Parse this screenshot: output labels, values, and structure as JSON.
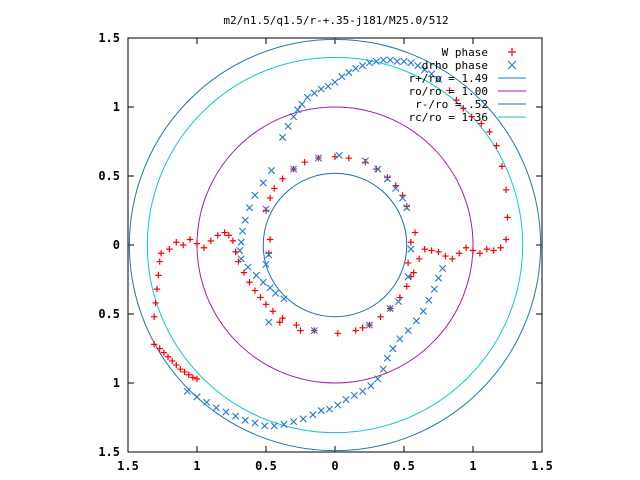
{
  "chart_data": {
    "type": "scatter",
    "title": "m2/n1.5/q1.5/r-+.35-j181/M25.0/512",
    "xlabel": "",
    "ylabel": "",
    "xlim": [
      -1.5,
      1.5
    ],
    "ylim": [
      -1.5,
      1.5
    ],
    "x_tick_labels": [
      "1.5",
      "1",
      "0.5",
      "0",
      "0.5",
      "1",
      "1.5"
    ],
    "y_tick_labels": [
      "1.5",
      "1",
      "0.5",
      "0",
      "0.5",
      "1",
      "1.5"
    ],
    "x_tick_values": [
      -1.5,
      -1,
      -0.5,
      0,
      0.5,
      1,
      1.5
    ],
    "y_tick_values": [
      1.5,
      1,
      0.5,
      0,
      -0.5,
      -1,
      -1.5
    ],
    "legend_position": "top-right",
    "grid": false,
    "circles": [
      {
        "name": "r+/ro = 1.49",
        "radius": 1.49,
        "color": "#1f77b4"
      },
      {
        "name": "ro/ro = 1.00",
        "radius": 1.0,
        "color": "#a020a0"
      },
      {
        "name": "r-/ro = .52",
        "radius": 0.52,
        "color": "#1a6fc0"
      },
      {
        "name": "rc/ro = 1.36",
        "radius": 1.36,
        "color": "#10c8c8"
      }
    ],
    "series": [
      {
        "name": "W phase",
        "marker": "plus",
        "color": "#ff0000",
        "points": [
          [
            -1.31,
            -0.72
          ],
          [
            -1.27,
            -0.75
          ],
          [
            -1.24,
            -0.78
          ],
          [
            -1.21,
            -0.81
          ],
          [
            -1.18,
            -0.84
          ],
          [
            -1.15,
            -0.87
          ],
          [
            -1.12,
            -0.9
          ],
          [
            -1.09,
            -0.92
          ],
          [
            -1.06,
            -0.94
          ],
          [
            -1.03,
            -0.96
          ],
          [
            -1.0,
            -0.97
          ],
          [
            -1.31,
            -0.52
          ],
          [
            -1.3,
            -0.42
          ],
          [
            -1.29,
            -0.32
          ],
          [
            -1.28,
            -0.22
          ],
          [
            -1.27,
            -0.12
          ],
          [
            -1.26,
            -0.06
          ],
          [
            -1.2,
            -0.03
          ],
          [
            -1.15,
            0.02
          ],
          [
            -1.1,
            0.0
          ],
          [
            -1.05,
            0.04
          ],
          [
            -1.0,
            0.01
          ],
          [
            -0.95,
            -0.02
          ],
          [
            -0.9,
            0.03
          ],
          [
            -0.85,
            0.07
          ],
          [
            -0.8,
            0.09
          ],
          [
            -0.77,
            0.07
          ],
          [
            -0.74,
            0.03
          ],
          [
            -0.72,
            -0.05
          ],
          [
            -0.7,
            -0.12
          ],
          [
            -0.66,
            -0.2
          ],
          [
            -0.62,
            -0.27
          ],
          [
            -0.58,
            -0.33
          ],
          [
            -0.54,
            -0.38
          ],
          [
            -0.5,
            -0.43
          ],
          [
            -0.45,
            -0.48
          ],
          [
            -0.38,
            -0.53
          ],
          [
            -0.28,
            -0.58
          ],
          [
            -0.15,
            -0.62
          ],
          [
            0.02,
            -0.64
          ],
          [
            0.15,
            -0.62
          ],
          [
            0.25,
            -0.58
          ],
          [
            0.33,
            -0.52
          ],
          [
            0.4,
            -0.46
          ],
          [
            0.47,
            -0.38
          ],
          [
            0.52,
            -0.3
          ],
          [
            0.57,
            -0.2
          ],
          [
            0.61,
            -0.1
          ],
          [
            0.65,
            -0.03
          ],
          [
            0.7,
            -0.04
          ],
          [
            0.75,
            -0.05
          ],
          [
            0.8,
            -0.08
          ],
          [
            0.85,
            -0.1
          ],
          [
            0.9,
            -0.06
          ],
          [
            0.95,
            -0.02
          ],
          [
            1.0,
            -0.04
          ],
          [
            1.05,
            -0.06
          ],
          [
            1.1,
            -0.03
          ],
          [
            1.15,
            -0.04
          ],
          [
            1.2,
            -0.02
          ],
          [
            1.24,
            0.04
          ],
          [
            1.25,
            0.2
          ],
          [
            1.24,
            0.4
          ],
          [
            1.21,
            0.57
          ],
          [
            1.17,
            0.72
          ],
          [
            1.12,
            0.82
          ],
          [
            1.06,
            0.88
          ],
          [
            0.99,
            0.93
          ],
          [
            0.93,
            0.99
          ],
          [
            0.88,
            1.05
          ],
          [
            0.83,
            1.12
          ],
          [
            0.52,
            0.28
          ],
          [
            0.49,
            0.36
          ],
          [
            0.44,
            0.43
          ],
          [
            0.38,
            0.49
          ],
          [
            0.3,
            0.55
          ],
          [
            0.22,
            0.6
          ],
          [
            0.1,
            0.63
          ],
          [
            0.0,
            0.64
          ],
          [
            -0.12,
            0.63
          ],
          [
            -0.22,
            0.6
          ],
          [
            -0.3,
            0.55
          ],
          [
            -0.38,
            0.48
          ],
          [
            -0.44,
            0.41
          ],
          [
            -0.47,
            0.34
          ],
          [
            -0.5,
            0.25
          ],
          [
            -0.47,
            0.04
          ],
          [
            -0.48,
            -0.06
          ],
          [
            -0.4,
            -0.56
          ],
          [
            -0.25,
            -0.62
          ],
          [
            0.2,
            -0.6
          ],
          [
            0.55,
            0.02
          ],
          [
            0.58,
            0.09
          ],
          [
            0.53,
            -0.13
          ],
          [
            0.55,
            -0.23
          ]
        ]
      },
      {
        "name": "drho phase",
        "marker": "x",
        "color": "#1f77d4",
        "points": [
          [
            -1.07,
            -1.06
          ],
          [
            -1.0,
            -1.1
          ],
          [
            -0.93,
            -1.14
          ],
          [
            -0.86,
            -1.18
          ],
          [
            -0.79,
            -1.21
          ],
          [
            -0.72,
            -1.24
          ],
          [
            -0.65,
            -1.27
          ],
          [
            -0.58,
            -1.29
          ],
          [
            -0.51,
            -1.31
          ],
          [
            -0.44,
            -1.31
          ],
          [
            -0.37,
            -1.3
          ],
          [
            -0.3,
            -1.28
          ],
          [
            -0.23,
            -1.26
          ],
          [
            -0.16,
            -1.23
          ],
          [
            -0.1,
            -1.2
          ],
          [
            -0.04,
            -1.19
          ],
          [
            0.02,
            -1.16
          ],
          [
            0.08,
            -1.12
          ],
          [
            0.14,
            -1.09
          ],
          [
            0.2,
            -1.06
          ],
          [
            0.26,
            -1.02
          ],
          [
            0.31,
            -0.97
          ],
          [
            0.35,
            -0.9
          ],
          [
            0.38,
            -0.82
          ],
          [
            0.42,
            -0.75
          ],
          [
            0.47,
            -0.68
          ],
          [
            0.53,
            -0.62
          ],
          [
            0.59,
            -0.55
          ],
          [
            0.64,
            -0.48
          ],
          [
            0.68,
            -0.4
          ],
          [
            0.72,
            -0.32
          ],
          [
            0.75,
            -0.24
          ],
          [
            0.78,
            -0.17
          ],
          [
            -0.46,
            0.54
          ],
          [
            -0.52,
            0.45
          ],
          [
            -0.58,
            0.36
          ],
          [
            -0.62,
            0.27
          ],
          [
            -0.65,
            0.18
          ],
          [
            -0.67,
            0.1
          ],
          [
            -0.68,
            0.02
          ],
          [
            -0.69,
            -0.04
          ],
          [
            -0.68,
            -0.1
          ],
          [
            -0.63,
            -0.16
          ],
          [
            -0.57,
            -0.22
          ],
          [
            -0.52,
            -0.27
          ],
          [
            -0.47,
            -0.31
          ],
          [
            -0.43,
            -0.35
          ],
          [
            -0.37,
            -0.39
          ],
          [
            -0.38,
            0.78
          ],
          [
            -0.34,
            0.86
          ],
          [
            -0.3,
            0.93
          ],
          [
            -0.27,
            0.98
          ],
          [
            -0.24,
            1.02
          ],
          [
            -0.2,
            1.07
          ],
          [
            -0.15,
            1.1
          ],
          [
            -0.1,
            1.13
          ],
          [
            -0.05,
            1.15
          ],
          [
            0.0,
            1.18
          ],
          [
            0.05,
            1.22
          ],
          [
            0.1,
            1.25
          ],
          [
            0.15,
            1.28
          ],
          [
            0.2,
            1.3
          ],
          [
            0.25,
            1.32
          ],
          [
            0.3,
            1.33
          ],
          [
            0.35,
            1.34
          ],
          [
            0.4,
            1.34
          ],
          [
            0.45,
            1.33
          ],
          [
            0.5,
            1.33
          ],
          [
            0.55,
            1.32
          ],
          [
            0.6,
            1.3
          ],
          [
            0.65,
            1.27
          ],
          [
            0.7,
            1.24
          ],
          [
            0.75,
            1.2
          ],
          [
            0.22,
            0.61
          ],
          [
            0.31,
            0.55
          ],
          [
            0.38,
            0.48
          ],
          [
            0.44,
            0.41
          ],
          [
            0.49,
            0.34
          ],
          [
            0.52,
            0.27
          ],
          [
            -0.5,
            0.26
          ],
          [
            -0.5,
            -0.14
          ],
          [
            -0.48,
            -0.07
          ],
          [
            -0.48,
            -0.56
          ],
          [
            -0.15,
            -0.62
          ],
          [
            0.25,
            -0.58
          ],
          [
            0.4,
            -0.46
          ],
          [
            0.55,
            -0.03
          ],
          [
            0.53,
            -0.23
          ],
          [
            0.46,
            -0.41
          ],
          [
            0.03,
            0.65
          ],
          [
            -0.12,
            0.63
          ],
          [
            -0.3,
            0.55
          ]
        ]
      }
    ]
  }
}
